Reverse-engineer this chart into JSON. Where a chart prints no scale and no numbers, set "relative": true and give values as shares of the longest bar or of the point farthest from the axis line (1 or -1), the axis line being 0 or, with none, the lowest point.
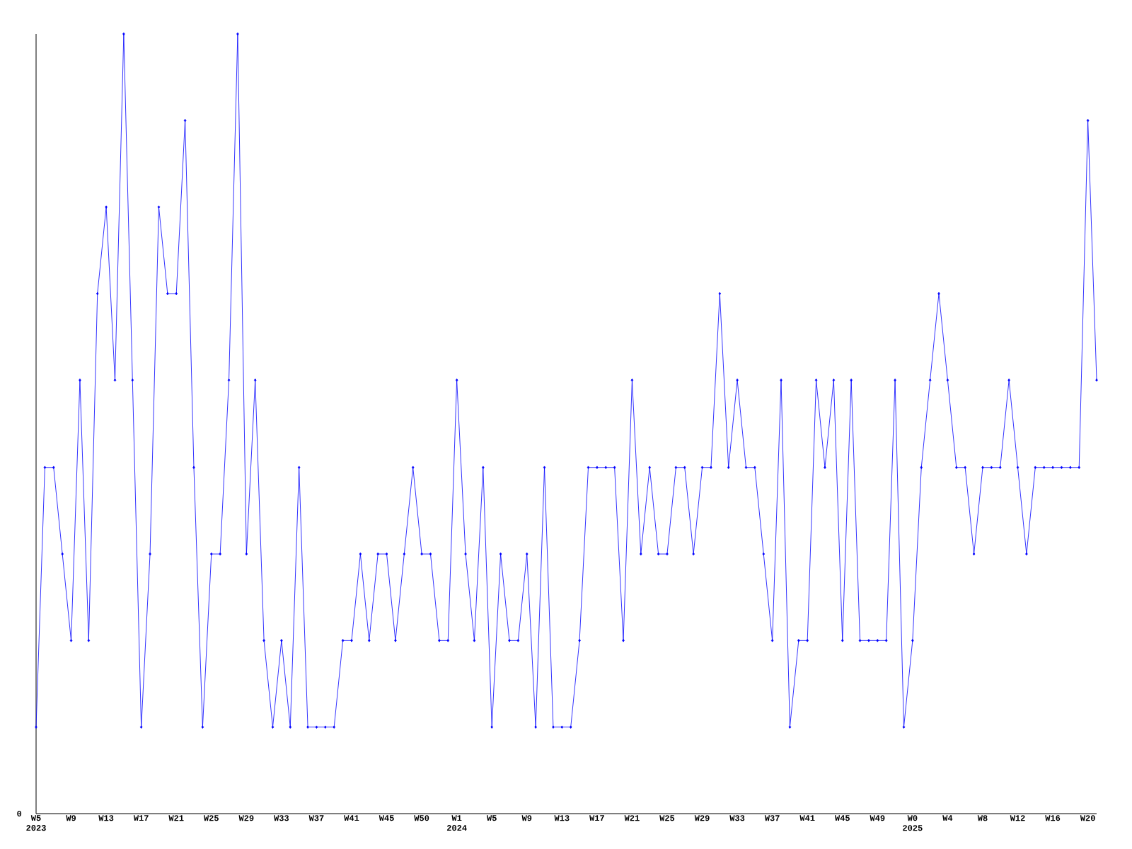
{
  "chart_data": {
    "type": "line",
    "relative": true,
    "color": "#0000ff",
    "marker": "diamond",
    "grid": false,
    "categories": [
      "W5 2023",
      null,
      null,
      null,
      "W9",
      null,
      null,
      null,
      "W13",
      null,
      null,
      null,
      "W17",
      null,
      null,
      null,
      "W21",
      null,
      null,
      null,
      "W25",
      null,
      null,
      null,
      "W29",
      null,
      null,
      null,
      "W33",
      null,
      null,
      null,
      "W37",
      null,
      null,
      null,
      "W41",
      null,
      null,
      null,
      "W45",
      null,
      null,
      null,
      "W50",
      null,
      null,
      null,
      "W1 2024",
      null,
      null,
      null,
      "W5",
      null,
      null,
      null,
      "W9",
      null,
      null,
      null,
      "W13",
      null,
      null,
      null,
      "W17",
      null,
      null,
      null,
      "W21",
      null,
      null,
      null,
      "W25",
      null,
      null,
      null,
      "W29",
      null,
      null,
      null,
      "W33",
      null,
      null,
      null,
      "W37",
      null,
      null,
      null,
      "W41",
      null,
      null,
      null,
      "W45",
      null,
      null,
      null,
      "W49",
      null,
      null,
      null,
      "W0 2025",
      null,
      null,
      null,
      "W4",
      null,
      null,
      null,
      "W8",
      null,
      null,
      null,
      "W12",
      null,
      null,
      null,
      "W16",
      null,
      null,
      null,
      "W20",
      null
    ],
    "values": [
      0.111,
      0.444,
      0.444,
      0.333,
      0.222,
      0.556,
      0.222,
      0.667,
      0.778,
      0.556,
      1,
      0.556,
      0.111,
      0.333,
      0.778,
      0.667,
      0.667,
      0.889,
      0.444,
      0.111,
      0.333,
      0.333,
      0.556,
      1,
      0.333,
      0.556,
      0.222,
      0.111,
      0.222,
      0.111,
      0.444,
      0.111,
      0.111,
      0.111,
      0.111,
      0.222,
      0.222,
      0.333,
      0.222,
      0.333,
      0.333,
      0.222,
      0.333,
      0.444,
      0.333,
      0.333,
      0.222,
      0.222,
      0.556,
      0.333,
      0.222,
      0.444,
      0.111,
      0.333,
      0.222,
      0.222,
      0.333,
      0.111,
      0.444,
      0.111,
      0.111,
      0.111,
      0.222,
      0.444,
      0.444,
      0.444,
      0.444,
      0.222,
      0.556,
      0.333,
      0.444,
      0.333,
      0.333,
      0.444,
      0.444,
      0.333,
      0.444,
      0.444,
      0.667,
      0.444,
      0.556,
      0.444,
      0.444,
      0.333,
      0.222,
      0.556,
      0.111,
      0.222,
      0.222,
      0.556,
      0.444,
      0.556,
      0.222,
      0.556,
      0.222,
      0.222,
      0.222,
      0.222,
      0.556,
      0.111,
      0.222,
      0.444,
      0.556,
      0.667,
      0.556,
      0.444,
      0.444,
      0.333,
      0.444,
      0.444,
      0.444,
      0.556,
      0.444,
      0.333,
      0.444,
      0.444,
      0.444,
      0.444,
      0.444,
      0.444,
      0.889,
      0.556
    ],
    "annotations": [
      "0"
    ]
  }
}
